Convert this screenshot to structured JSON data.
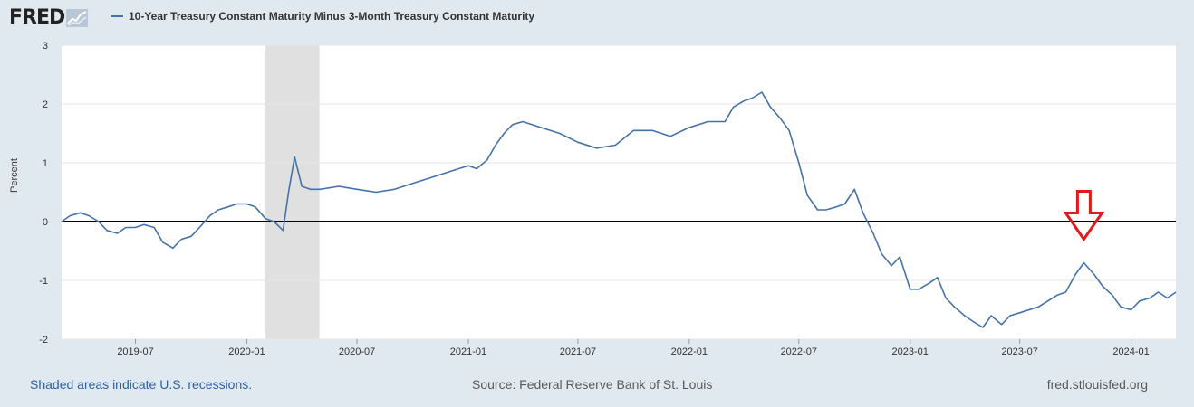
{
  "header": {
    "logo_text": "FRED",
    "legend_label": "10-Year Treasury Constant Maturity Minus 3-Month Treasury Constant Maturity"
  },
  "colors": {
    "series": "#4572a7",
    "recession": "#e0e0e0",
    "marker": "#e0191b"
  },
  "footer": {
    "recession_note": "Shaded areas indicate U.S. recessions.",
    "source": "Source: Federal Reserve Bank of St. Louis",
    "site": "fred.stlouisfed.org"
  },
  "chart_data": {
    "type": "line",
    "title": "10-Year Treasury Constant Maturity Minus 3-Month Treasury Constant Maturity",
    "xlabel": "",
    "ylabel": "Percent",
    "xlim": [
      "2019-03-01",
      "2024-03-15"
    ],
    "ylim": [
      -2,
      3
    ],
    "yticks": [
      {
        "value": 3,
        "label": "3"
      },
      {
        "value": 2,
        "label": "2"
      },
      {
        "value": 1,
        "label": "1"
      },
      {
        "value": 0,
        "label": "0"
      },
      {
        "value": -1,
        "label": "-1"
      },
      {
        "value": -2,
        "label": "-2"
      }
    ],
    "xticks": [
      {
        "date": "2019-07-01",
        "label": "2019-07"
      },
      {
        "date": "2020-01-01",
        "label": "2020-01"
      },
      {
        "date": "2020-07-01",
        "label": "2020-07"
      },
      {
        "date": "2021-01-01",
        "label": "2021-01"
      },
      {
        "date": "2021-07-01",
        "label": "2021-07"
      },
      {
        "date": "2022-01-01",
        "label": "2022-01"
      },
      {
        "date": "2022-07-01",
        "label": "2022-07"
      },
      {
        "date": "2023-01-01",
        "label": "2023-01"
      },
      {
        "date": "2023-07-01",
        "label": "2023-07"
      },
      {
        "date": "2024-01-01",
        "label": "2024-01"
      }
    ],
    "reference_line": 0,
    "recessions": [
      {
        "start": "2020-02-01",
        "end": "2020-04-30"
      }
    ],
    "annotations": [
      {
        "type": "down-arrow",
        "date": "2023-10-15",
        "value": -0.3
      }
    ],
    "series": [
      {
        "name": "10-Year Treasury Constant Maturity Minus 3-Month Treasury Constant Maturity",
        "points": [
          [
            "2019-03-01",
            0.0
          ],
          [
            "2019-03-15",
            0.1
          ],
          [
            "2019-04-01",
            0.15
          ],
          [
            "2019-04-15",
            0.1
          ],
          [
            "2019-05-01",
            0.0
          ],
          [
            "2019-05-15",
            -0.15
          ],
          [
            "2019-06-01",
            -0.2
          ],
          [
            "2019-06-15",
            -0.1
          ],
          [
            "2019-07-01",
            -0.1
          ],
          [
            "2019-07-15",
            -0.05
          ],
          [
            "2019-08-01",
            -0.1
          ],
          [
            "2019-08-15",
            -0.35
          ],
          [
            "2019-09-01",
            -0.45
          ],
          [
            "2019-09-15",
            -0.3
          ],
          [
            "2019-10-01",
            -0.25
          ],
          [
            "2019-10-15",
            -0.1
          ],
          [
            "2019-11-01",
            0.1
          ],
          [
            "2019-11-15",
            0.2
          ],
          [
            "2019-12-01",
            0.25
          ],
          [
            "2019-12-15",
            0.3
          ],
          [
            "2020-01-01",
            0.3
          ],
          [
            "2020-01-15",
            0.25
          ],
          [
            "2020-02-01",
            0.05
          ],
          [
            "2020-02-15",
            0.0
          ],
          [
            "2020-03-01",
            -0.15
          ],
          [
            "2020-03-10",
            0.5
          ],
          [
            "2020-03-20",
            1.1
          ],
          [
            "2020-04-01",
            0.6
          ],
          [
            "2020-04-15",
            0.55
          ],
          [
            "2020-05-01",
            0.55
          ],
          [
            "2020-06-01",
            0.6
          ],
          [
            "2020-07-01",
            0.55
          ],
          [
            "2020-08-01",
            0.5
          ],
          [
            "2020-09-01",
            0.55
          ],
          [
            "2020-10-01",
            0.65
          ],
          [
            "2020-11-01",
            0.75
          ],
          [
            "2020-12-01",
            0.85
          ],
          [
            "2021-01-01",
            0.95
          ],
          [
            "2021-01-15",
            0.9
          ],
          [
            "2021-02-01",
            1.05
          ],
          [
            "2021-02-15",
            1.3
          ],
          [
            "2021-03-01",
            1.5
          ],
          [
            "2021-03-15",
            1.65
          ],
          [
            "2021-04-01",
            1.7
          ],
          [
            "2021-05-01",
            1.6
          ],
          [
            "2021-06-01",
            1.5
          ],
          [
            "2021-07-01",
            1.35
          ],
          [
            "2021-08-01",
            1.25
          ],
          [
            "2021-09-01",
            1.3
          ],
          [
            "2021-10-01",
            1.55
          ],
          [
            "2021-11-01",
            1.55
          ],
          [
            "2021-12-01",
            1.45
          ],
          [
            "2022-01-01",
            1.6
          ],
          [
            "2022-02-01",
            1.7
          ],
          [
            "2022-03-01",
            1.7
          ],
          [
            "2022-03-15",
            1.95
          ],
          [
            "2022-04-01",
            2.05
          ],
          [
            "2022-04-15",
            2.1
          ],
          [
            "2022-05-01",
            2.2
          ],
          [
            "2022-05-15",
            1.95
          ],
          [
            "2022-06-01",
            1.75
          ],
          [
            "2022-06-15",
            1.55
          ],
          [
            "2022-07-01",
            1.0
          ],
          [
            "2022-07-15",
            0.45
          ],
          [
            "2022-08-01",
            0.2
          ],
          [
            "2022-08-15",
            0.2
          ],
          [
            "2022-09-01",
            0.25
          ],
          [
            "2022-09-15",
            0.3
          ],
          [
            "2022-10-01",
            0.55
          ],
          [
            "2022-10-15",
            0.15
          ],
          [
            "2022-11-01",
            -0.2
          ],
          [
            "2022-11-15",
            -0.55
          ],
          [
            "2022-12-01",
            -0.75
          ],
          [
            "2022-12-15",
            -0.6
          ],
          [
            "2023-01-01",
            -1.15
          ],
          [
            "2023-01-15",
            -1.15
          ],
          [
            "2023-02-01",
            -1.05
          ],
          [
            "2023-02-15",
            -0.95
          ],
          [
            "2023-03-01",
            -1.3
          ],
          [
            "2023-03-15",
            -1.45
          ],
          [
            "2023-04-01",
            -1.6
          ],
          [
            "2023-04-15",
            -1.7
          ],
          [
            "2023-05-01",
            -1.8
          ],
          [
            "2023-05-15",
            -1.6
          ],
          [
            "2023-06-01",
            -1.75
          ],
          [
            "2023-06-15",
            -1.6
          ],
          [
            "2023-07-01",
            -1.55
          ],
          [
            "2023-08-01",
            -1.45
          ],
          [
            "2023-09-01",
            -1.25
          ],
          [
            "2023-09-15",
            -1.2
          ],
          [
            "2023-10-01",
            -0.9
          ],
          [
            "2023-10-15",
            -0.7
          ],
          [
            "2023-11-01",
            -0.9
          ],
          [
            "2023-11-15",
            -1.1
          ],
          [
            "2023-12-01",
            -1.25
          ],
          [
            "2023-12-15",
            -1.45
          ],
          [
            "2024-01-01",
            -1.5
          ],
          [
            "2024-01-15",
            -1.35
          ],
          [
            "2024-02-01",
            -1.3
          ],
          [
            "2024-02-15",
            -1.2
          ],
          [
            "2024-03-01",
            -1.3
          ],
          [
            "2024-03-15",
            -1.2
          ]
        ]
      }
    ]
  }
}
